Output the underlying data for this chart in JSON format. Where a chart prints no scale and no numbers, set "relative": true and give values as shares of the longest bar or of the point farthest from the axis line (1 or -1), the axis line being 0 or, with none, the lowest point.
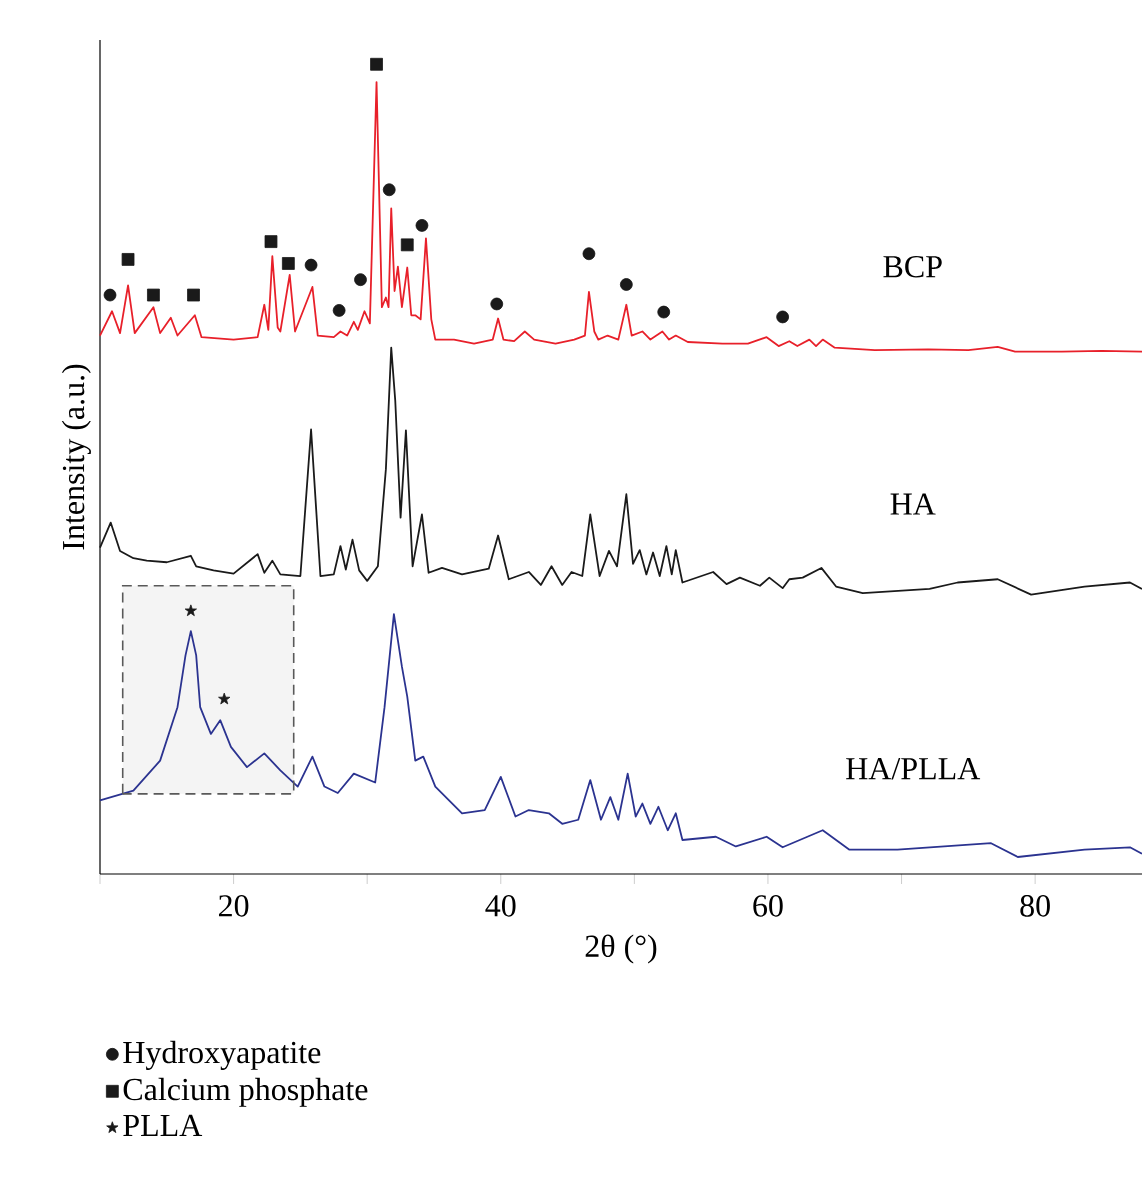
{
  "chart_data": {
    "type": "line",
    "relative": true,
    "xlabel": "2θ (°)",
    "ylabel": "Intensity (a.u.)",
    "xlim": [
      10,
      88
    ],
    "xticks": [
      {
        "value": 10,
        "label": null
      },
      20,
      {
        "value": 30,
        "label": null
      },
      40,
      {
        "value": 50,
        "label": null
      },
      60,
      {
        "value": 70,
        "label": null
      },
      80
    ],
    "legend": "bottom",
    "series": [
      {
        "color": "#e8202a",
        "x": [
          10.0,
          10.9,
          11.5,
          12.1,
          12.6,
          14.0,
          14.5,
          15.3,
          15.8,
          17.1,
          17.6,
          20.0,
          21.8,
          22.3,
          22.6,
          22.9,
          23.3,
          23.5,
          24.2,
          24.6,
          25.9,
          26.3,
          27.5,
          28.0,
          28.5,
          29.0,
          29.3,
          29.8,
          30.2,
          30.7,
          31.1,
          31.4,
          31.6,
          31.8,
          32.05,
          32.3,
          32.6,
          33.0,
          33.3,
          33.6,
          34.0,
          34.4,
          34.8,
          35.1,
          36.5,
          38.0,
          39.4,
          39.8,
          40.2,
          41.0,
          41.8,
          42.5,
          44.1,
          45.5,
          46.3,
          46.6,
          47.0,
          47.3,
          48.0,
          48.8,
          49.4,
          49.8,
          50.6,
          51.2,
          52.1,
          52.6,
          53.1,
          54.0,
          56.6,
          58.5,
          59.9,
          60.8,
          61.6,
          62.2,
          63.1,
          63.6,
          64.1,
          65.0,
          68.0,
          72.0,
          75.0,
          77.2,
          78.5,
          82.0,
          85.0,
          88.0
        ],
        "values": [
          0.665,
          0.695,
          0.668,
          0.727,
          0.668,
          0.7,
          0.668,
          0.687,
          0.665,
          0.69,
          0.663,
          0.66,
          0.663,
          0.703,
          0.672,
          0.763,
          0.675,
          0.67,
          0.74,
          0.67,
          0.725,
          0.665,
          0.663,
          0.67,
          0.665,
          0.682,
          0.672,
          0.695,
          0.68,
          0.978,
          0.7,
          0.712,
          0.7,
          0.822,
          0.72,
          0.75,
          0.7,
          0.749,
          0.69,
          0.69,
          0.685,
          0.785,
          0.685,
          0.66,
          0.66,
          0.655,
          0.66,
          0.686,
          0.66,
          0.658,
          0.67,
          0.66,
          0.655,
          0.66,
          0.665,
          0.719,
          0.67,
          0.66,
          0.665,
          0.66,
          0.703,
          0.665,
          0.67,
          0.66,
          0.67,
          0.66,
          0.665,
          0.657,
          0.655,
          0.655,
          0.663,
          0.652,
          0.658,
          0.652,
          0.66,
          0.652,
          0.66,
          0.65,
          0.647,
          0.648,
          0.647,
          0.651,
          0.645,
          0.645,
          0.646,
          0.645
        ]
      },
      {
        "color": "#1a1a1a",
        "x": [
          10.0,
          10.8,
          11.5,
          12.5,
          13.5,
          15.0,
          16.8,
          17.2,
          18.5,
          20.0,
          21.8,
          22.3,
          22.9,
          23.5,
          25.0,
          25.8,
          26.5,
          27.5,
          28.0,
          28.4,
          28.9,
          29.4,
          30.0,
          30.8,
          31.4,
          31.8,
          32.1,
          32.5,
          32.9,
          33.4,
          34.1,
          34.6,
          35.6,
          37.1,
          39.1,
          39.8,
          40.6,
          42.1,
          43.0,
          43.8,
          44.6,
          45.3,
          46.1,
          46.7,
          47.4,
          48.1,
          48.7,
          49.4,
          49.9,
          50.4,
          50.9,
          51.4,
          51.9,
          52.4,
          52.8,
          53.1,
          53.6,
          55.9,
          56.9,
          57.9,
          59.4,
          60.1,
          61.1,
          61.6,
          62.6,
          64.0,
          65.1,
          67.1,
          72.1,
          74.2,
          77.2,
          79.7,
          83.7,
          87.1,
          88.0
        ],
        "values": [
          0.403,
          0.434,
          0.399,
          0.39,
          0.387,
          0.385,
          0.393,
          0.38,
          0.375,
          0.371,
          0.395,
          0.372,
          0.387,
          0.37,
          0.368,
          0.549,
          0.368,
          0.37,
          0.405,
          0.376,
          0.413,
          0.375,
          0.362,
          0.38,
          0.5,
          0.65,
          0.585,
          0.44,
          0.548,
          0.38,
          0.444,
          0.372,
          0.378,
          0.37,
          0.377,
          0.418,
          0.364,
          0.373,
          0.357,
          0.38,
          0.357,
          0.373,
          0.368,
          0.444,
          0.368,
          0.399,
          0.38,
          0.469,
          0.383,
          0.4,
          0.37,
          0.397,
          0.368,
          0.405,
          0.37,
          0.4,
          0.36,
          0.373,
          0.358,
          0.366,
          0.356,
          0.366,
          0.353,
          0.364,
          0.366,
          0.378,
          0.355,
          0.347,
          0.352,
          0.36,
          0.364,
          0.345,
          0.355,
          0.36,
          0.352
        ]
      },
      {
        "color": "#2b3390",
        "x": [
          10.0,
          12.5,
          14.5,
          15.8,
          16.4,
          16.8,
          17.2,
          17.5,
          18.3,
          19.0,
          19.8,
          21.0,
          22.3,
          23.5,
          24.8,
          25.9,
          26.8,
          27.8,
          29.0,
          30.6,
          31.3,
          32.0,
          32.6,
          33.0,
          33.6,
          34.2,
          35.1,
          37.1,
          38.8,
          40.0,
          41.1,
          42.1,
          43.6,
          44.6,
          45.8,
          46.7,
          47.5,
          48.2,
          48.8,
          49.5,
          50.1,
          50.6,
          51.2,
          51.8,
          52.5,
          53.1,
          53.6,
          56.1,
          57.6,
          59.9,
          61.1,
          64.1,
          66.1,
          69.7,
          76.7,
          78.7,
          83.7,
          87.1,
          88.0
        ],
        "values": [
          0.091,
          0.103,
          0.14,
          0.206,
          0.27,
          0.3,
          0.27,
          0.206,
          0.173,
          0.19,
          0.157,
          0.132,
          0.149,
          0.128,
          0.108,
          0.145,
          0.108,
          0.1,
          0.124,
          0.113,
          0.206,
          0.321,
          0.256,
          0.219,
          0.14,
          0.145,
          0.108,
          0.075,
          0.079,
          0.12,
          0.071,
          0.079,
          0.075,
          0.062,
          0.067,
          0.116,
          0.067,
          0.095,
          0.067,
          0.124,
          0.071,
          0.087,
          0.062,
          0.083,
          0.054,
          0.075,
          0.042,
          0.046,
          0.034,
          0.046,
          0.033,
          0.054,
          0.03,
          0.03,
          0.038,
          0.021,
          0.03,
          0.033,
          0.025
        ]
      },
      {
        "type": "scatter",
        "name": "Hydroxyapatite",
        "marker": "circle",
        "color": "#1a1a1a",
        "x": [
          10.75,
          25.8,
          27.9,
          29.5,
          31.65,
          34.1,
          39.7,
          46.6,
          49.4,
          52.2,
          61.1
        ],
        "values": [
          0.715,
          0.752,
          0.696,
          0.734,
          0.845,
          0.801,
          0.704,
          0.766,
          0.728,
          0.694,
          0.688
        ]
      },
      {
        "type": "scatter",
        "name": "Calcium phosphate",
        "marker": "square",
        "color": "#1a1a1a",
        "x": [
          12.1,
          14.0,
          17.0,
          22.8,
          24.1,
          30.7,
          33.0
        ],
        "values": [
          0.759,
          0.715,
          0.715,
          0.781,
          0.754,
          1.0,
          0.777
        ]
      },
      {
        "type": "scatter",
        "name": "PLLA",
        "marker": "star",
        "color": "#1a1a1a",
        "x": [
          16.8,
          19.3
        ],
        "values": [
          0.325,
          0.216
        ]
      }
    ],
    "bands": [
      {
        "axis": "x",
        "from": 11.7,
        "to": 24.5,
        "color": "#f4f4f4"
      }
    ],
    "annotations": [
      "BCP",
      "HA",
      "HA/PLLA"
    ]
  }
}
